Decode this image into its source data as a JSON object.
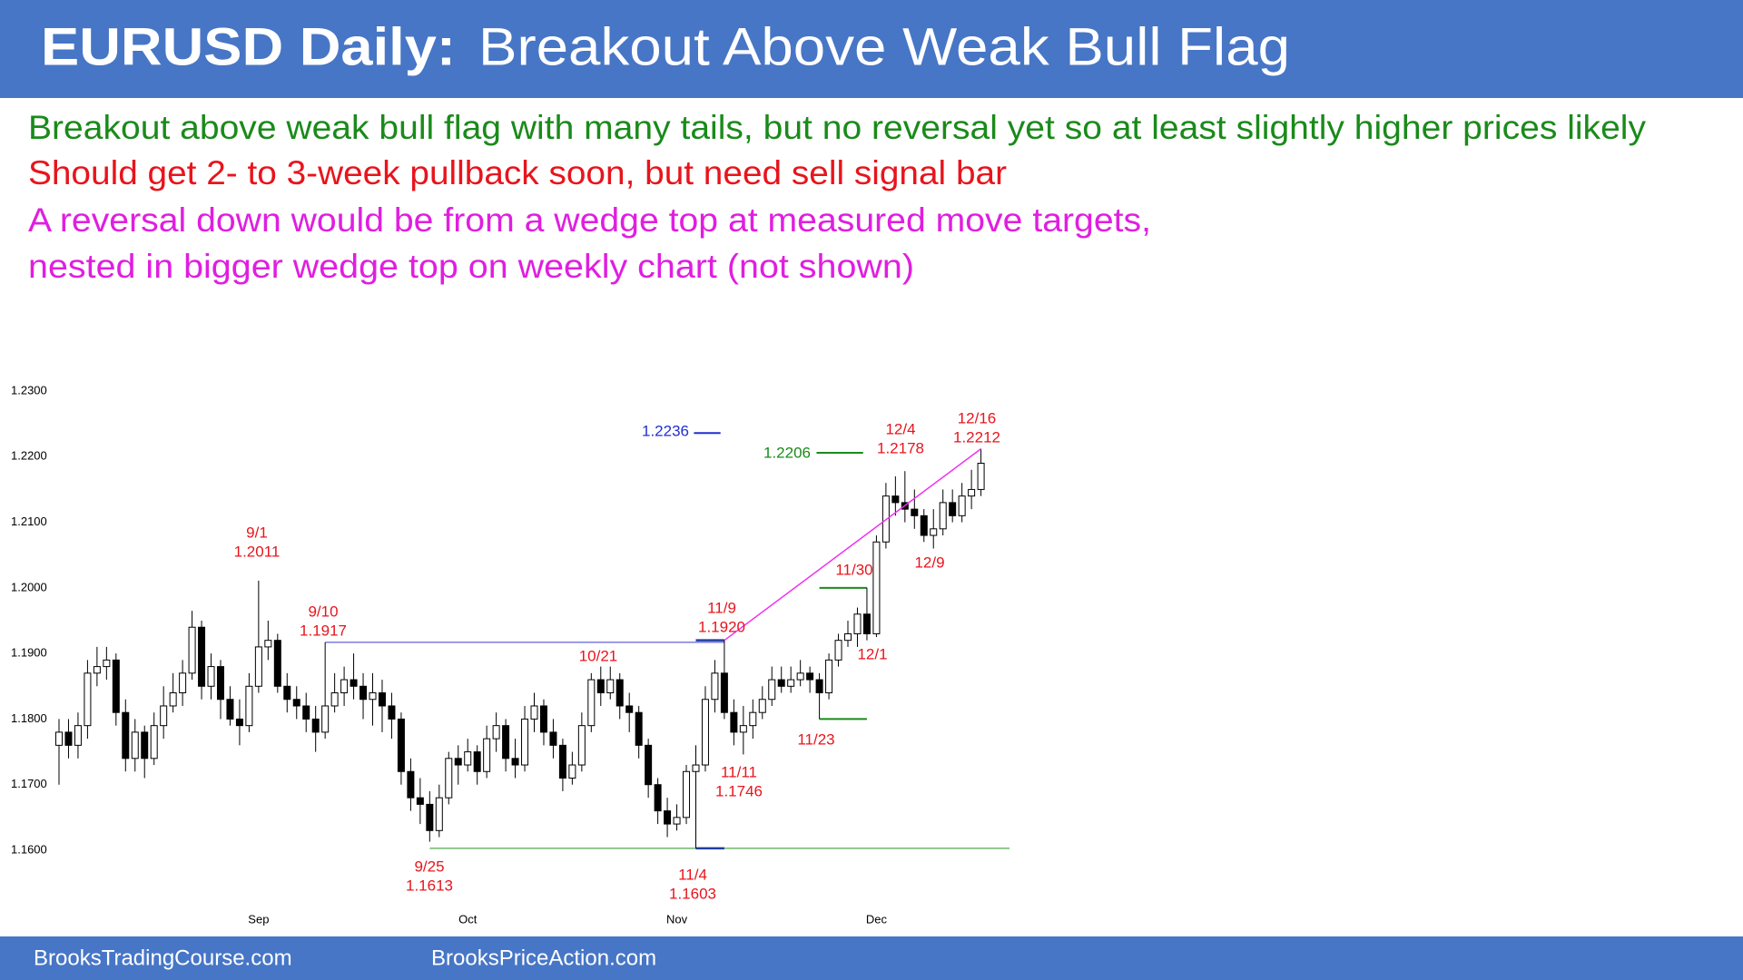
{
  "header": {
    "title_bold": "EURUSD Daily:",
    "title": "Breakout Above Weak Bull Flag"
  },
  "notes": [
    {
      "text": "Breakout above weak bull flag with many tails, but no reversal yet so at least slightly higher prices likely",
      "color": "#1a8a1a"
    },
    {
      "text": "Should get 2- to 3-week pullback soon, but need sell signal bar",
      "color": "#e8141c"
    },
    {
      "text": "A reversal down would be from a wedge top at measured move targets,",
      "color": "#e01ee0"
    },
    {
      "text": "nested in bigger wedge top on weekly chart (not shown)",
      "color": "#e01ee0"
    }
  ],
  "footer": {
    "left": "BrooksTradingCourse.com",
    "right": "BrooksPriceAction.com"
  },
  "chart_data": {
    "type": "candlestick",
    "ylim": [
      1.16,
      1.23
    ],
    "yticks": [
      {
        "value": 1.16,
        "label": "1.1600"
      },
      {
        "value": 1.17,
        "label": "1.1700"
      },
      {
        "value": 1.18,
        "label": "1.1800"
      },
      {
        "value": 1.19,
        "label": "1.1900"
      },
      {
        "value": 1.2,
        "label": "1.2000"
      },
      {
        "value": 1.21,
        "label": "1.2100"
      },
      {
        "value": 1.22,
        "label": "1.2200"
      },
      {
        "value": 1.23,
        "label": "1.2300"
      }
    ],
    "xticks": [
      {
        "value": 21,
        "label": "Sep"
      },
      {
        "value": 43,
        "label": "Oct"
      },
      {
        "value": 65,
        "label": "Nov"
      },
      {
        "value": 86,
        "label": "Dec"
      }
    ],
    "up_color": "#ffffff",
    "down_color": "#000000",
    "open": [
      1.176,
      1.178,
      1.176,
      1.179,
      1.187,
      1.188,
      1.189,
      1.181,
      1.174,
      1.178,
      1.174,
      1.179,
      1.182,
      1.184,
      1.187,
      1.194,
      1.185,
      1.188,
      1.183,
      1.18,
      1.179,
      1.185,
      1.191,
      1.192,
      1.185,
      1.183,
      1.182,
      1.18,
      1.178,
      1.182,
      1.184,
      1.186,
      1.185,
      1.183,
      1.184,
      1.182,
      1.18,
      1.172,
      1.168,
      1.167,
      1.163,
      1.168,
      1.174,
      1.173,
      1.175,
      1.172,
      1.177,
      1.179,
      1.174,
      1.173,
      1.18,
      1.182,
      1.178,
      1.176,
      1.171,
      1.173,
      1.179,
      1.186,
      1.184,
      1.186,
      1.182,
      1.181,
      1.176,
      1.17,
      1.166,
      1.164,
      1.165,
      1.172,
      1.173,
      1.183,
      1.187,
      1.181,
      1.178,
      1.179,
      1.181,
      1.183,
      1.186,
      1.185,
      1.186,
      1.187,
      1.186,
      1.184,
      1.189,
      1.192,
      1.193,
      1.196,
      1.193,
      1.207,
      1.214,
      1.213,
      1.212,
      1.211,
      1.208,
      1.209,
      1.213,
      1.211,
      1.214,
      1.215
    ],
    "high": [
      1.18,
      1.18,
      1.181,
      1.189,
      1.191,
      1.191,
      1.19,
      1.183,
      1.18,
      1.179,
      1.181,
      1.185,
      1.187,
      1.189,
      1.1965,
      1.195,
      1.19,
      1.189,
      1.185,
      1.183,
      1.187,
      1.2011,
      1.195,
      1.193,
      1.187,
      1.185,
      1.184,
      1.182,
      1.1917,
      1.187,
      1.188,
      1.19,
      1.187,
      1.187,
      1.186,
      1.184,
      1.181,
      1.174,
      1.171,
      1.169,
      1.17,
      1.175,
      1.176,
      1.177,
      1.176,
      1.179,
      1.181,
      1.18,
      1.177,
      1.182,
      1.184,
      1.183,
      1.18,
      1.177,
      1.175,
      1.181,
      1.187,
      1.188,
      1.188,
      1.187,
      1.184,
      1.182,
      1.177,
      1.171,
      1.168,
      1.167,
      1.173,
      1.176,
      1.185,
      1.189,
      1.192,
      1.183,
      1.182,
      1.183,
      1.185,
      1.188,
      1.188,
      1.188,
      1.189,
      1.188,
      1.187,
      1.19,
      1.193,
      1.195,
      1.197,
      1.2,
      1.208,
      1.216,
      1.217,
      1.2178,
      1.215,
      1.212,
      1.212,
      1.215,
      1.215,
      1.216,
      1.218,
      1.2212
    ],
    "low": [
      1.17,
      1.174,
      1.174,
      1.177,
      1.185,
      1.186,
      1.179,
      1.172,
      1.172,
      1.171,
      1.173,
      1.177,
      1.181,
      1.182,
      1.186,
      1.183,
      1.183,
      1.18,
      1.179,
      1.176,
      1.178,
      1.184,
      1.189,
      1.184,
      1.181,
      1.18,
      1.178,
      1.175,
      1.177,
      1.181,
      1.182,
      1.183,
      1.18,
      1.179,
      1.178,
      1.177,
      1.17,
      1.166,
      1.164,
      1.1613,
      1.162,
      1.167,
      1.17,
      1.172,
      1.17,
      1.171,
      1.175,
      1.172,
      1.171,
      1.172,
      1.178,
      1.176,
      1.174,
      1.169,
      1.17,
      1.172,
      1.178,
      1.182,
      1.183,
      1.18,
      1.178,
      1.174,
      1.168,
      1.164,
      1.162,
      1.163,
      1.164,
      1.1603,
      1.172,
      1.181,
      1.18,
      1.176,
      1.1746,
      1.177,
      1.18,
      1.182,
      1.184,
      1.184,
      1.185,
      1.184,
      1.18,
      1.183,
      1.188,
      1.191,
      1.191,
      1.192,
      1.1925,
      1.206,
      1.211,
      1.21,
      1.209,
      1.207,
      1.206,
      1.208,
      1.21,
      1.21,
      1.212,
      1.214
    ],
    "close": [
      1.178,
      1.176,
      1.179,
      1.187,
      1.188,
      1.189,
      1.181,
      1.174,
      1.178,
      1.174,
      1.179,
      1.182,
      1.184,
      1.187,
      1.194,
      1.185,
      1.188,
      1.183,
      1.18,
      1.179,
      1.185,
      1.191,
      1.192,
      1.185,
      1.183,
      1.182,
      1.18,
      1.178,
      1.182,
      1.184,
      1.186,
      1.185,
      1.183,
      1.184,
      1.182,
      1.18,
      1.172,
      1.168,
      1.167,
      1.163,
      1.168,
      1.174,
      1.173,
      1.175,
      1.172,
      1.177,
      1.179,
      1.174,
      1.173,
      1.18,
      1.182,
      1.178,
      1.176,
      1.171,
      1.173,
      1.179,
      1.186,
      1.184,
      1.186,
      1.182,
      1.181,
      1.176,
      1.17,
      1.166,
      1.164,
      1.165,
      1.172,
      1.173,
      1.183,
      1.187,
      1.181,
      1.178,
      1.179,
      1.181,
      1.183,
      1.186,
      1.185,
      1.186,
      1.187,
      1.186,
      1.184,
      1.189,
      1.192,
      1.193,
      1.196,
      1.193,
      1.207,
      1.214,
      1.213,
      1.212,
      1.211,
      1.208,
      1.209,
      1.213,
      1.211,
      1.214,
      1.215,
      1.219
    ],
    "lines": [
      {
        "value": 1.1917,
        "from": 28,
        "to": 70,
        "color": "#3a3ad0",
        "width": 1
      },
      {
        "value": 1.1603,
        "from": 39,
        "to": 100,
        "color": "#6cb86c",
        "width": 1.5
      },
      {
        "value": 1.1603,
        "from": 67,
        "to": 70,
        "color": "#1f3f9f",
        "width": 2.5
      },
      {
        "value": 1.192,
        "from": 67,
        "to": 70,
        "color": "#1f3f9f",
        "width": 2.5
      },
      {
        "value": 1.2236,
        "from": 66.8,
        "to": 69.6,
        "color": "#1f2fd0",
        "width": 2
      },
      {
        "value": 1.2206,
        "from": 79.7,
        "to": 84.6,
        "color": "#1a8a1a",
        "width": 2
      },
      {
        "value": 1.2,
        "from": 80,
        "to": 85,
        "color": "#1a8a1a",
        "width": 2
      },
      {
        "value": 1.18,
        "from": 80,
        "to": 85,
        "color": "#1a8a1a",
        "width": 2
      }
    ],
    "trendline": {
      "values": [
        1.192,
        1.2212
      ],
      "from": 70,
      "to": 97,
      "color": "#f030f0"
    },
    "annotations": [
      {
        "label": "9/1",
        "price": "1.2011",
        "color": "#e8141c"
      },
      {
        "label": "9/10",
        "price": "1.1917",
        "color": "#e8141c"
      },
      {
        "label": "9/25",
        "price": "1.1613",
        "color": "#e8141c"
      },
      {
        "label": "10/21",
        "color": "#e8141c"
      },
      {
        "label": "11/9",
        "price": "1.1920",
        "color": "#e8141c"
      },
      {
        "label": "11/4",
        "price": "1.1603",
        "color": "#e8141c"
      },
      {
        "label": "11/11",
        "price": "1.1746",
        "color": "#e8141c"
      },
      {
        "label": "11/23",
        "color": "#e8141c"
      },
      {
        "label": "11/30",
        "color": "#e8141c"
      },
      {
        "label": "12/1",
        "color": "#e8141c"
      },
      {
        "label": "12/4",
        "price": "1.2178",
        "color": "#e8141c"
      },
      {
        "label": "12/9",
        "color": "#e8141c"
      },
      {
        "label": "12/16",
        "price": "1.2212",
        "color": "#e8141c"
      },
      {
        "label": "1.2236",
        "color": "#1f2fd0"
      },
      {
        "label": "1.2206",
        "color": "#1a8a1a"
      }
    ]
  }
}
